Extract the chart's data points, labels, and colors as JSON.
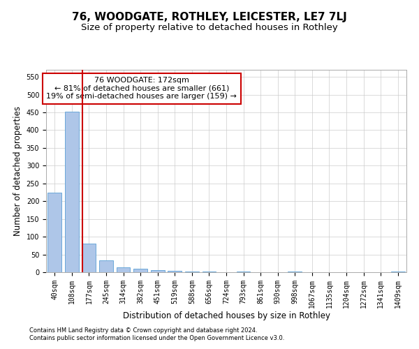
{
  "title": "76, WOODGATE, ROTHLEY, LEICESTER, LE7 7LJ",
  "subtitle": "Size of property relative to detached houses in Rothley",
  "xlabel": "Distribution of detached houses by size in Rothley",
  "ylabel": "Number of detached properties",
  "categories": [
    "40sqm",
    "108sqm",
    "177sqm",
    "245sqm",
    "314sqm",
    "382sqm",
    "451sqm",
    "519sqm",
    "588sqm",
    "656sqm",
    "724sqm",
    "793sqm",
    "861sqm",
    "930sqm",
    "998sqm",
    "1067sqm",
    "1135sqm",
    "1204sqm",
    "1272sqm",
    "1341sqm",
    "1409sqm"
  ],
  "values": [
    225,
    452,
    80,
    33,
    13,
    9,
    6,
    3,
    1,
    1,
    0,
    1,
    0,
    0,
    1,
    0,
    0,
    0,
    0,
    0,
    1
  ],
  "bar_color": "#aec6e8",
  "bar_edge_color": "#5a9fd4",
  "vline_color": "#cc0000",
  "annotation_text": "76 WOODGATE: 172sqm\n← 81% of detached houses are smaller (661)\n19% of semi-detached houses are larger (159) →",
  "annotation_box_color": "#ffffff",
  "annotation_box_edge": "#cc0000",
  "ylim": [
    0,
    570
  ],
  "yticks": [
    0,
    50,
    100,
    150,
    200,
    250,
    300,
    350,
    400,
    450,
    500,
    550
  ],
  "footnote1": "Contains HM Land Registry data © Crown copyright and database right 2024.",
  "footnote2": "Contains public sector information licensed under the Open Government Licence v3.0.",
  "bg_color": "#ffffff",
  "grid_color": "#cccccc",
  "title_fontsize": 11,
  "subtitle_fontsize": 9.5,
  "tick_fontsize": 7,
  "label_fontsize": 8.5,
  "footnote_fontsize": 6.0
}
